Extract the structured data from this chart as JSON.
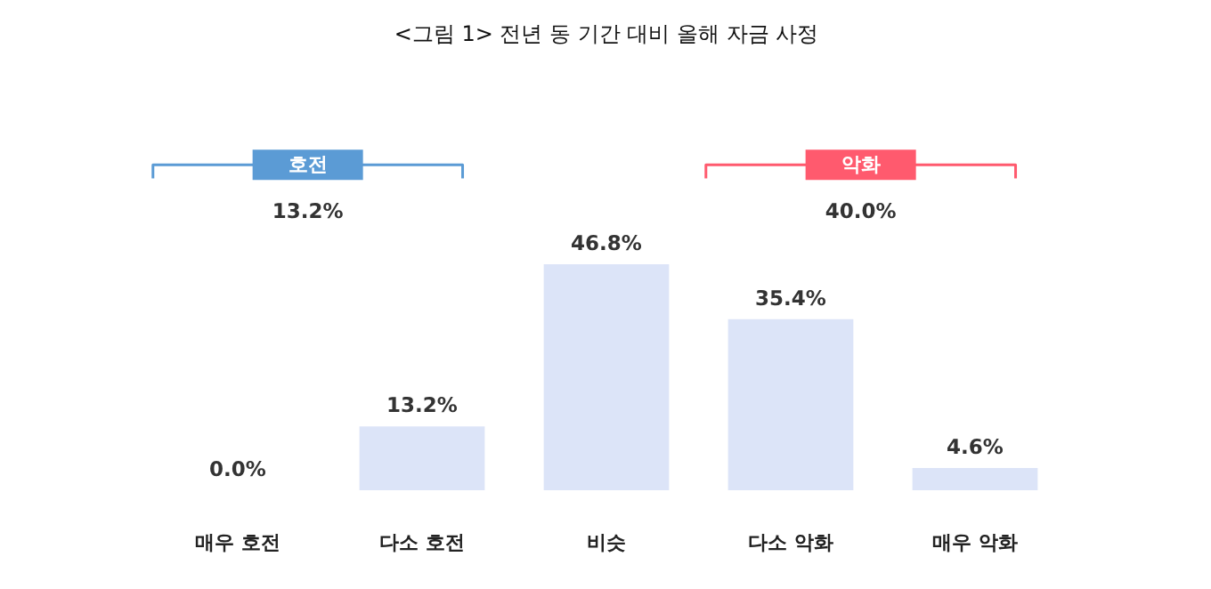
{
  "chart_data": {
    "type": "bar",
    "title": "<그림 1> 전년 동 기간 대비 올해 자금 사정",
    "categories": [
      "매우 호전",
      "다소 호전",
      "비슷",
      "다소 악화",
      "매우 악화"
    ],
    "values": [
      0.0,
      13.2,
      46.8,
      35.4,
      4.6
    ],
    "color": "#dce4f8",
    "value_labels": [
      "0.0%",
      "13.2%",
      "46.8%",
      "35.4%",
      "4.6%"
    ],
    "annotations": [
      "호전",
      "13.2%",
      "악화",
      "40.0%"
    ],
    "grid": false
  }
}
